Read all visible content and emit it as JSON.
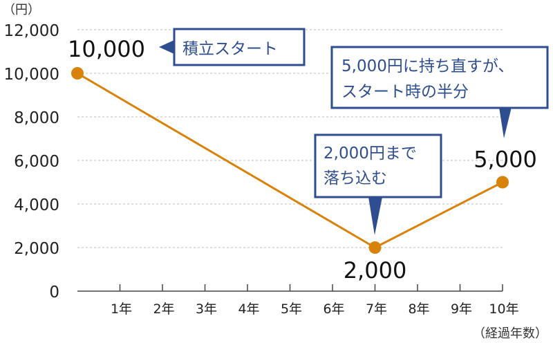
{
  "chart_data": {
    "type": "line",
    "yunit": "（円）",
    "xunit": "（経過年数）",
    "x": [
      0,
      1,
      2,
      3,
      4,
      5,
      6,
      7,
      8,
      9,
      10
    ],
    "xticklabels": [
      "",
      "1年",
      "2年",
      "3年",
      "4年",
      "5年",
      "6年",
      "7年",
      "8年",
      "9年",
      "10年"
    ],
    "yticks": [
      0,
      2000,
      4000,
      6000,
      8000,
      10000,
      12000
    ],
    "yticklabels": [
      "0",
      "2,000",
      "4,000",
      "6,000",
      "8,000",
      "10,000",
      "12,000"
    ],
    "ylim": [
      0,
      12000
    ],
    "xlim": [
      0,
      10
    ],
    "grid": "horizontal-dashed",
    "series": [
      {
        "color": "#d9820a",
        "points": [
          {
            "x": 0,
            "y": 10000,
            "label": "10,000"
          },
          {
            "x": 7,
            "y": 2000,
            "label": "2,000"
          },
          {
            "x": 10,
            "y": 5000,
            "label": "5,000"
          }
        ]
      }
    ],
    "annotations": [
      {
        "lines": [
          "積立スタート"
        ]
      },
      {
        "lines": [
          "2,000円まで",
          "落ち込む"
        ]
      },
      {
        "lines": [
          "5,000円に持ち直すが、",
          "スタート時の半分"
        ]
      }
    ],
    "colors": {
      "line": "#d9820a",
      "callout_border": "#2e4e8f",
      "callout_text": "#2e4e8f",
      "grid": "#bbbbbb",
      "axis": "#444444"
    }
  }
}
